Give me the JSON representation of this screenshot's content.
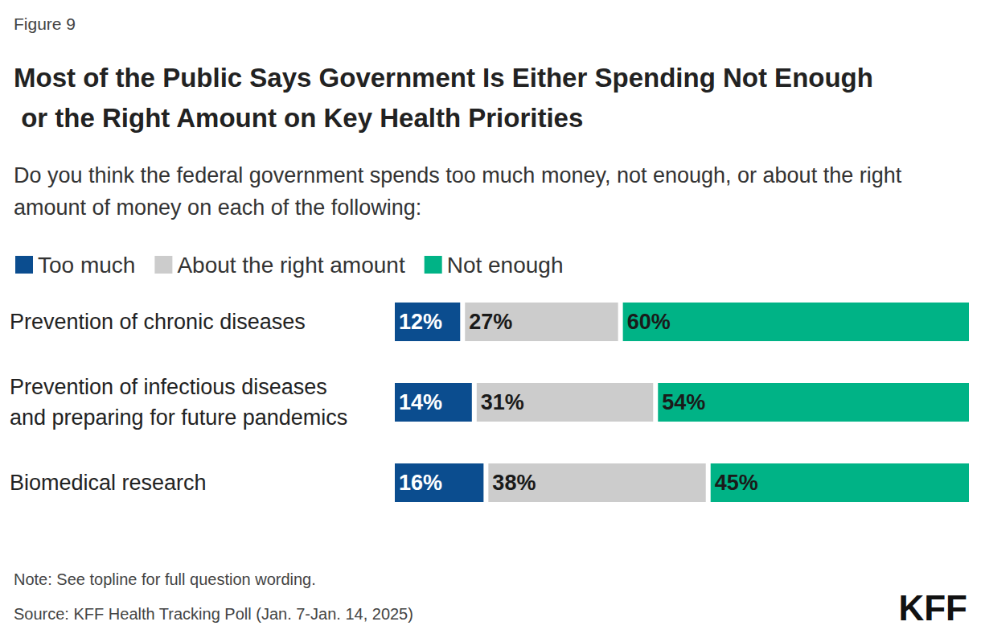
{
  "chart_data": {
    "type": "bar",
    "figure_label": "Figure 9",
    "title": "Most of the Public Says Government Is Either Spending Not Enough or the Right Amount on Key Health Priorities",
    "subtitle": "Do you think the federal government spends too much money, not enough, or about the right amount of money on each of the following:",
    "note": "Note: See topline for full question wording.",
    "source": "Source: KFF Health Tracking Poll (Jan. 7-Jan. 14, 2025)",
    "logo": "KFF",
    "orientation": "horizontal",
    "stacked": true,
    "data_labels": true,
    "tick_labels": false,
    "grid": false,
    "legend": "top-left",
    "categories": [
      "Prevention of chronic diseases",
      "Prevention of infectious diseases and preparing for future pandemics",
      "Biomedical research"
    ],
    "xlim": [
      0,
      99
    ],
    "series": [
      {
        "name": "Too much",
        "color": "#0b4d8f",
        "values": [
          12,
          14,
          16
        ],
        "value_labels": [
          "12%",
          "14%",
          "16%"
        ]
      },
      {
        "name": "About the right amount",
        "color": "#cccccc",
        "values": [
          27,
          31,
          38
        ],
        "value_labels": [
          "27%",
          "31%",
          "38%"
        ]
      },
      {
        "name": "Not enough",
        "color": "#00b386",
        "values": [
          60,
          54,
          45
        ],
        "value_labels": [
          "60%",
          "54%",
          "45%"
        ]
      }
    ]
  }
}
